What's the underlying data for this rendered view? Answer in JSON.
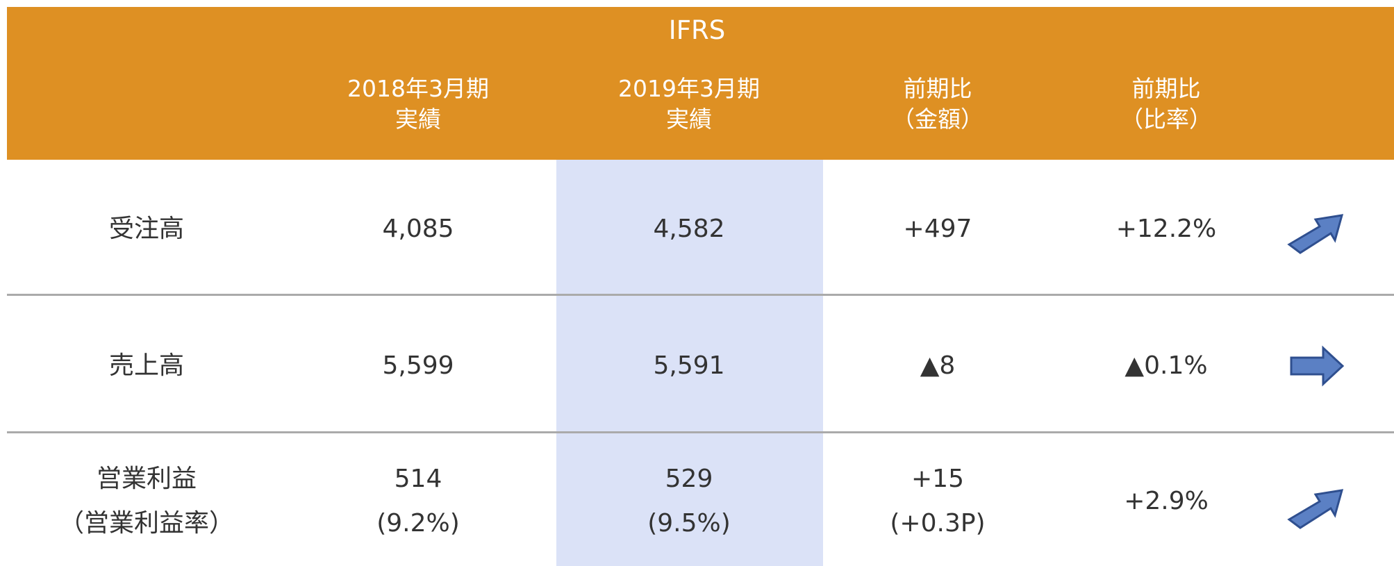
{
  "header": {
    "title": "IFRS",
    "columns": [
      [
        "2018年3月期",
        "実績"
      ],
      [
        "2019年3月期",
        "実績"
      ],
      [
        "前期比",
        "（金額）"
      ],
      [
        "前期比",
        "（比率）"
      ]
    ]
  },
  "table": {
    "rows": [
      {
        "label": [
          "受注高"
        ],
        "cells": [
          [
            "4,085"
          ],
          [
            "4,582"
          ],
          [
            "+497"
          ],
          [
            "+12.2%"
          ]
        ]
      },
      {
        "label": [
          "売上高"
        ],
        "cells": [
          [
            "5,599"
          ],
          [
            "5,591"
          ],
          [
            "▲8"
          ],
          [
            "▲0.1%"
          ]
        ]
      },
      {
        "label": [
          "営業利益",
          "（営業利益率）"
        ],
        "cells": [
          [
            "514",
            "(9.2%)"
          ],
          [
            "529",
            "(9.5%)"
          ],
          [
            "+15",
            "(+0.3P)"
          ],
          [
            "+2.9%"
          ]
        ]
      }
    ]
  }
}
